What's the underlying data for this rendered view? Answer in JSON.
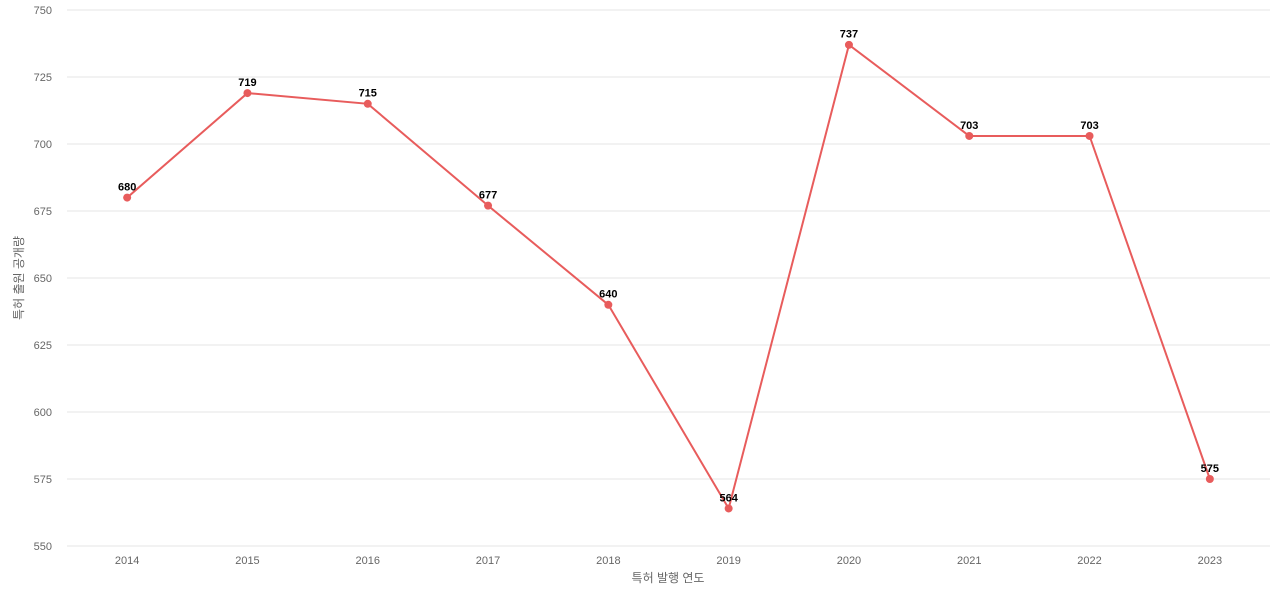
{
  "chart_data": {
    "type": "line",
    "x_label": "특허 발행 연도",
    "y_label": "특허 출원 공개량",
    "categories": [
      "2014",
      "2015",
      "2016",
      "2017",
      "2018",
      "2019",
      "2020",
      "2021",
      "2022",
      "2023"
    ],
    "series": [
      {
        "name": "특허 출원 공개량",
        "color": "#e85c5c",
        "values": [
          680,
          719,
          715,
          677,
          640,
          564,
          737,
          703,
          703,
          575
        ]
      }
    ],
    "ylim": [
      550,
      750
    ],
    "yticks": [
      550,
      575,
      600,
      625,
      650,
      675,
      700,
      725,
      750
    ],
    "grid": true
  }
}
